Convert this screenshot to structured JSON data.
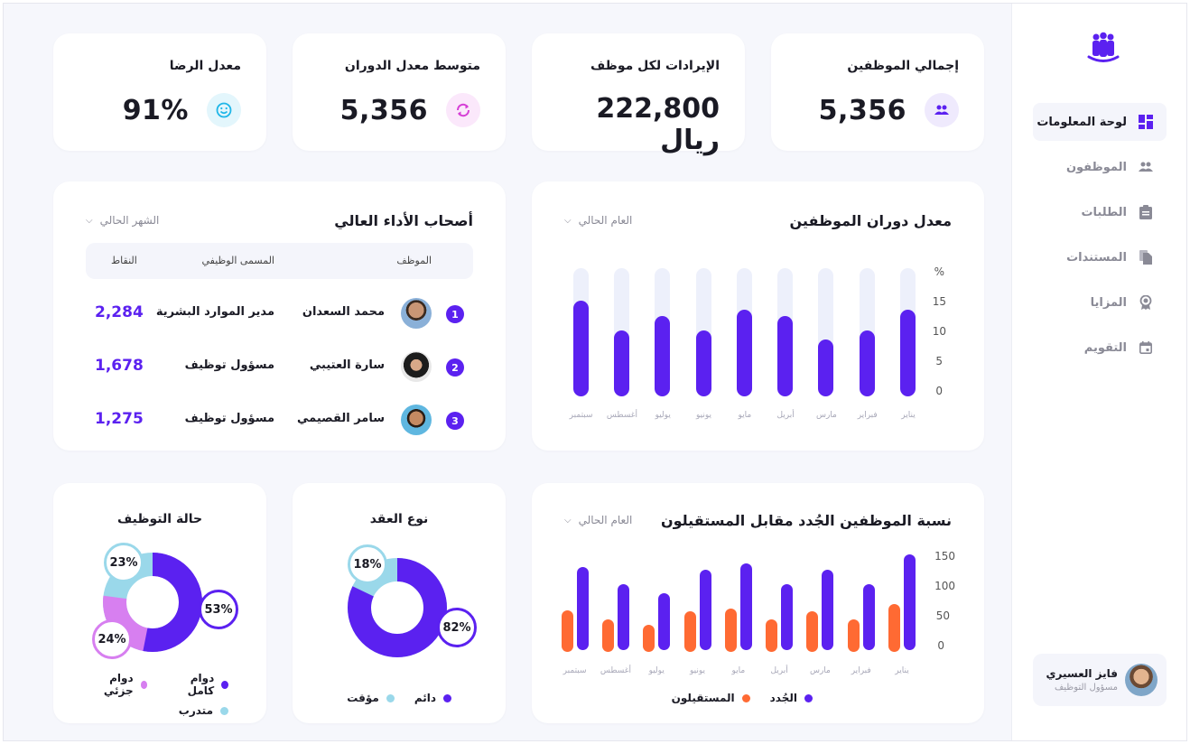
{
  "sidebar": {
    "logo_icon": "team-icon",
    "items": [
      {
        "label": "لوحة المعلومات",
        "icon": "dashboard-icon",
        "active": true
      },
      {
        "label": "الموظفون",
        "icon": "people-icon",
        "active": false
      },
      {
        "label": "الطلبات",
        "icon": "clipboard-icon",
        "active": false
      },
      {
        "label": "المستندات",
        "icon": "documents-icon",
        "active": false
      },
      {
        "label": "المزايا",
        "icon": "award-icon",
        "active": false
      },
      {
        "label": "التقويم",
        "icon": "calendar-icon",
        "active": false
      }
    ],
    "user": {
      "name": "فايز العسيري",
      "role": "مسؤول التوظيف"
    }
  },
  "kpis": [
    {
      "title": "إجمالي الموظفين",
      "value": "5,356",
      "icon": "people-icon",
      "icon_color": "#5b21f0",
      "icon_bg": "#efeafd"
    },
    {
      "title": "الإيرادات لكل موظف",
      "value": "222,800 ريال"
    },
    {
      "title": "متوسط معدل الدوران",
      "value": "5,356",
      "icon": "refresh-icon",
      "icon_color": "#d63fd6",
      "icon_bg": "#fbe8fb"
    },
    {
      "title": "معدل الرضا",
      "value": "91%",
      "icon": "smile-icon",
      "icon_color": "#1fb6e8",
      "icon_bg": "#e3f6fc"
    }
  ],
  "turnover": {
    "title": "معدل دوران الموظفين",
    "filter": "العام الحالي"
  },
  "top_performers": {
    "title": "أصحاب الأداء العالي",
    "filter": "الشهر الحالي",
    "columns": {
      "employee": "الموظف",
      "job_title": "المسمى الوظيفي",
      "points": "النقاط"
    },
    "rows": [
      {
        "rank": "1",
        "name": "محمد السعدان",
        "job_title": "مدير الموارد البشرية",
        "points": "2,284"
      },
      {
        "rank": "2",
        "name": "سارة العتيبي",
        "job_title": "مسؤول توظيف",
        "points": "1,678"
      },
      {
        "rank": "3",
        "name": "سامر القصيمي",
        "job_title": "مسؤول توظيف",
        "points": "1,275"
      }
    ]
  },
  "new_vs_leaving": {
    "title": "نسبة الموظفين الجُدد مقابل المستقيلون",
    "filter": "العام الحالي",
    "legend": {
      "new": "الجُدد",
      "leaving": "المستقيلون"
    }
  },
  "contract_type": {
    "title": "نوع العقد",
    "legend": {
      "permanent": "دائم",
      "temporary": "مؤقت"
    },
    "labels": {
      "permanent": "82%",
      "temporary": "18%"
    }
  },
  "employment_status": {
    "title": "حالة التوظيف",
    "legend": {
      "full_time": "دوام كامل",
      "part_time": "دوام جزئي",
      "intern": "متدرب"
    },
    "labels": {
      "full_time": "53%",
      "part_time": "24%",
      "intern": "23%"
    }
  },
  "colors": {
    "primary": "#5b21f0",
    "orange": "#ff6a33",
    "light_blue": "#9ad8ea",
    "pink": "#d77ff0",
    "track": "#edf0fb"
  },
  "chart_data": [
    {
      "type": "bar",
      "title": "معدل دوران الموظفين",
      "categories": [
        "يناير",
        "فبراير",
        "مارس",
        "أبريل",
        "مايو",
        "يونيو",
        "يوليو",
        "أغسطس",
        "سبتمبر"
      ],
      "values": [
        14.5,
        11,
        9.5,
        13.5,
        14.5,
        11,
        13.5,
        11,
        16
      ],
      "ylabel": "%",
      "yticks": [
        "%",
        "15",
        "10",
        "5",
        "0"
      ],
      "ylim": [
        0,
        20
      ],
      "grid": false
    },
    {
      "type": "bar",
      "title": "نسبة الموظفين الجُدد مقابل المستقيلون",
      "categories": [
        "يناير",
        "فبراير",
        "مارس",
        "أبريل",
        "مايو",
        "يونيو",
        "يوليو",
        "أغسطس",
        "سبتمبر"
      ],
      "series": [
        {
          "name": "الجُدد",
          "color": "#5b21f0",
          "values": [
            160,
            110,
            135,
            110,
            145,
            135,
            95,
            110,
            140
          ]
        },
        {
          "name": "المستقيلون",
          "color": "#ff6a33",
          "values": [
            80,
            55,
            68,
            55,
            72,
            68,
            45,
            55,
            70
          ]
        }
      ],
      "yticks": [
        "150",
        "100",
        "50",
        "0"
      ],
      "ylim": [
        0,
        150
      ],
      "legend_position": "bottom"
    },
    {
      "type": "pie",
      "title": "نوع العقد",
      "categories": [
        "دائم",
        "مؤقت"
      ],
      "values": [
        82,
        18
      ]
    },
    {
      "type": "pie",
      "title": "حالة التوظيف",
      "categories": [
        "دوام كامل",
        "دوام جزئي",
        "متدرب"
      ],
      "values": [
        53,
        24,
        23
      ]
    }
  ]
}
